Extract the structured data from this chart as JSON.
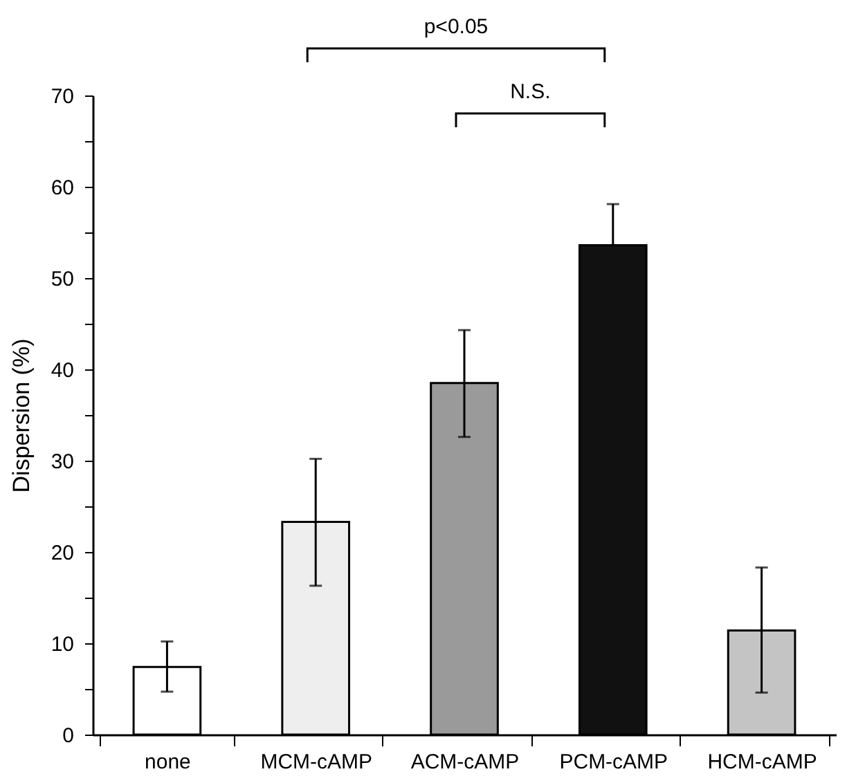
{
  "chart_data": {
    "type": "bar",
    "ylabel": "Dispersion (%)",
    "categories": [
      "none",
      "MCM-cAMP",
      "ACM-cAMP",
      "PCM-cAMP",
      "HCM-cAMP"
    ],
    "values": [
      7.4,
      23.3,
      38.5,
      53.6,
      11.4
    ],
    "errors": [
      [
        4.7,
        10.2
      ],
      [
        16.3,
        30.2
      ],
      [
        32.6,
        44.3
      ],
      [
        53.6,
        58.1
      ],
      [
        4.6,
        18.3
      ]
    ],
    "colors": [
      "#ffffff",
      "#eeeeee",
      "#9a9a9a",
      "#111111",
      "#c4c4c4"
    ],
    "ylim": [
      0,
      70
    ],
    "yticks": [
      0,
      {
        "value": 5,
        "label": null
      },
      10,
      {
        "value": 15,
        "label": null
      },
      20,
      {
        "value": 25,
        "label": null
      },
      30,
      {
        "value": 35,
        "label": null
      },
      40,
      {
        "value": 45,
        "label": null
      },
      50,
      {
        "value": 55,
        "label": null
      },
      60,
      {
        "value": 65,
        "label": null
      },
      70
    ],
    "annotations": [
      "p<0.05",
      "N.S."
    ],
    "grid": false
  }
}
